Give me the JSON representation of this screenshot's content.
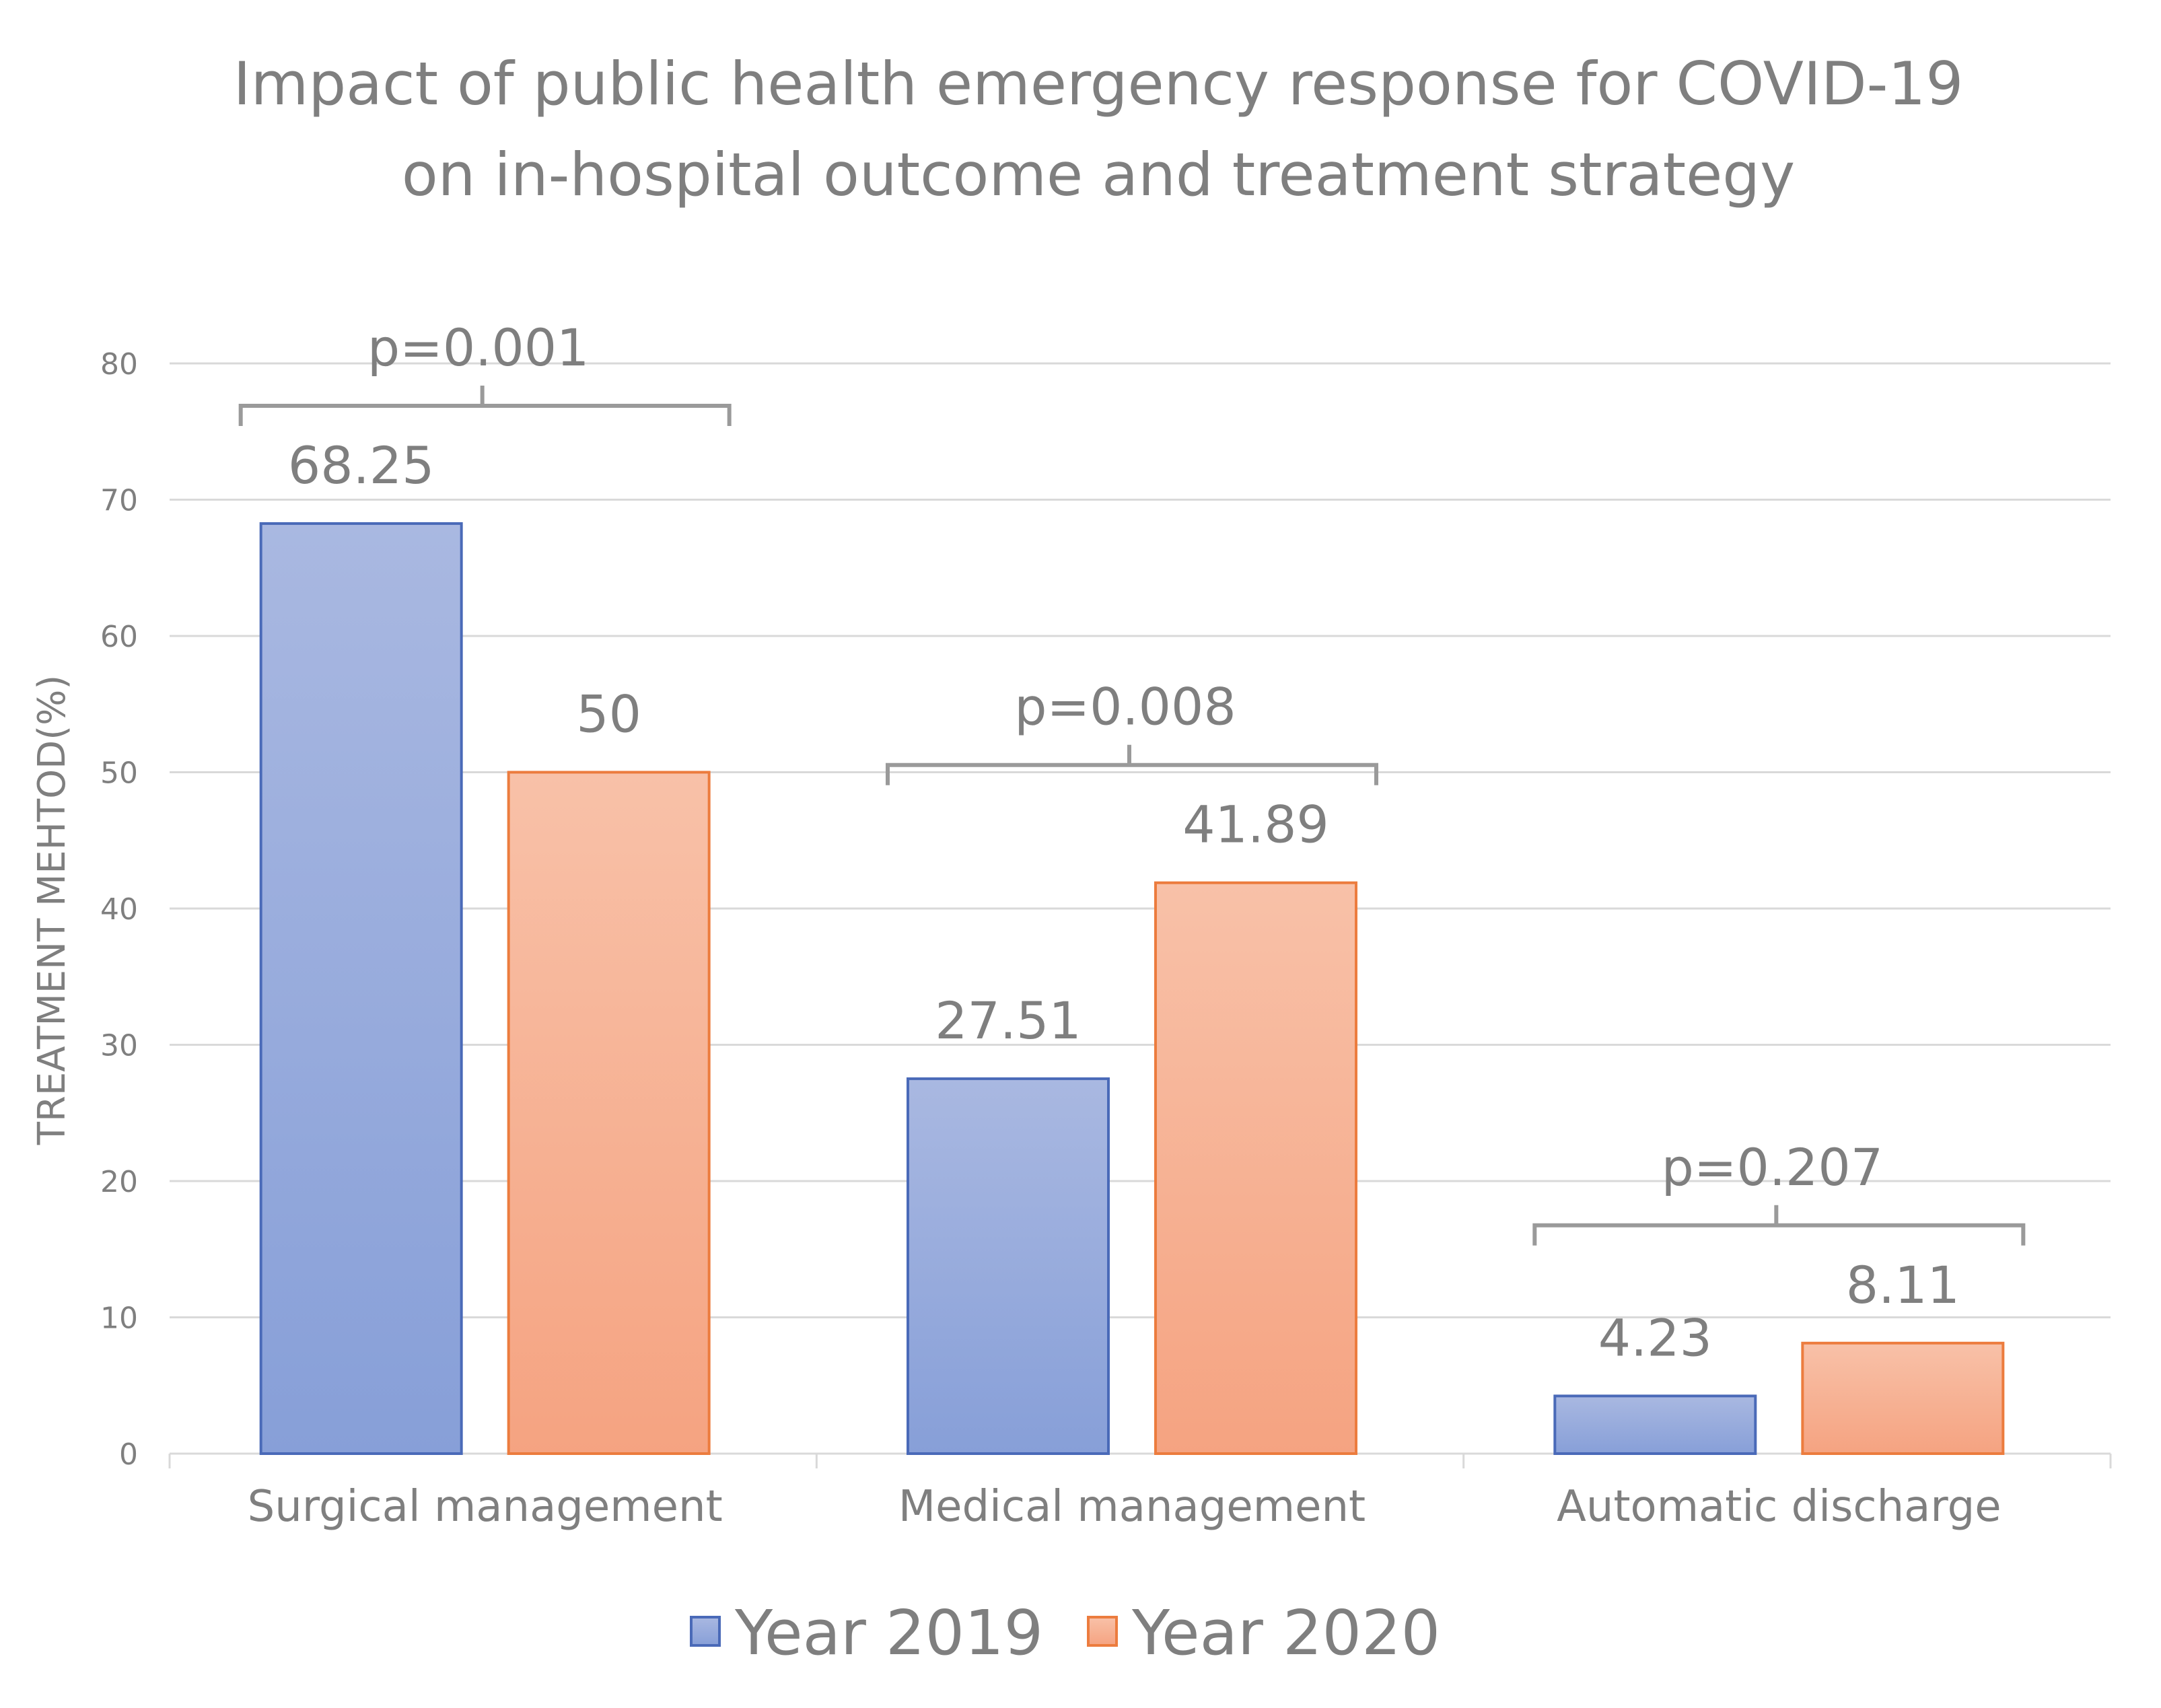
{
  "chart_data": {
    "type": "bar",
    "title_lines": [
      "Impact of public health emergency response for COVID-19",
      "on in-hospital outcome and treatment strategy"
    ],
    "ylabel": "TREATMENT  MEHTOD(%)",
    "xlabel": "",
    "ylim": [
      0,
      80
    ],
    "yticks": [
      0,
      10,
      20,
      30,
      40,
      50,
      60,
      70,
      80
    ],
    "grid": true,
    "legend_position": "bottom",
    "categories": [
      "Surgical management",
      "Medical management",
      "Automatic discharge"
    ],
    "series": [
      {
        "name": "Year 2019",
        "values": [
          68.25,
          27.51,
          4.23
        ],
        "labels": [
          "68.25",
          "27.51",
          "4.23"
        ],
        "color_top": "#a9b8e1",
        "color_bottom": "#879fd8",
        "border": "#4a6ab8"
      },
      {
        "name": "Year 2020",
        "values": [
          50,
          41.89,
          8.11
        ],
        "labels": [
          "50",
          "41.89",
          "8.11"
        ],
        "color_top": "#f8c1a8",
        "color_bottom": "#f5a381",
        "border": "#ec7c3e"
      }
    ],
    "annotations": [
      "p=0.001",
      "p=0.008",
      "p=0.207"
    ]
  }
}
